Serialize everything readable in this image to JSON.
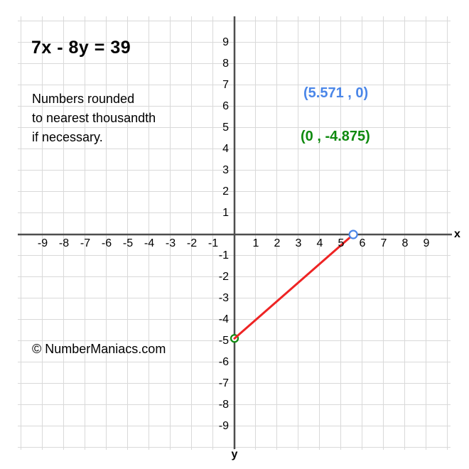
{
  "title": {
    "text": "7x - 8y = 39"
  },
  "note": {
    "lines": [
      "Numbers rounded",
      "to nearest thousandth",
      "if necessary."
    ]
  },
  "intercept_labels": {
    "x_intercept": {
      "text": "(5.571 , 0)",
      "color": "#4a86e8"
    },
    "y_intercept": {
      "text": "(0 , -4.875)",
      "color": "#0f8a0f"
    }
  },
  "watermark": {
    "text": "© NumberManiacs.com"
  },
  "axes": {
    "x_label": "x",
    "y_label": "y",
    "x_ticks": [
      -9,
      -8,
      -7,
      -6,
      -5,
      -4,
      -3,
      -2,
      -1,
      1,
      2,
      3,
      4,
      5,
      6,
      7,
      8,
      9
    ],
    "y_ticks": [
      -9,
      -8,
      -7,
      -6,
      -5,
      -4,
      -3,
      -2,
      -1,
      1,
      2,
      3,
      4,
      5,
      6,
      7,
      8,
      9
    ],
    "axis_color": "#4d4d4d",
    "grid_color": "#d9d9d9"
  },
  "chart_data": {
    "type": "line",
    "title": "7x - 8y = 39",
    "equation": "7x - 8y = 39",
    "xlabel": "x",
    "ylabel": "y",
    "xlim": [
      -10,
      10
    ],
    "ylim": [
      -10,
      10
    ],
    "grid": true,
    "grid_step": 1,
    "line_color": "#ee2424",
    "points": [
      {
        "x": 0,
        "y": -4.875,
        "label": "(0 , -4.875)",
        "role": "y-intercept",
        "marker_color": "#0f8a0f"
      },
      {
        "x": 5.571,
        "y": 0,
        "label": "(5.571 , 0)",
        "role": "x-intercept",
        "marker_color": "#4a86e8"
      }
    ]
  }
}
